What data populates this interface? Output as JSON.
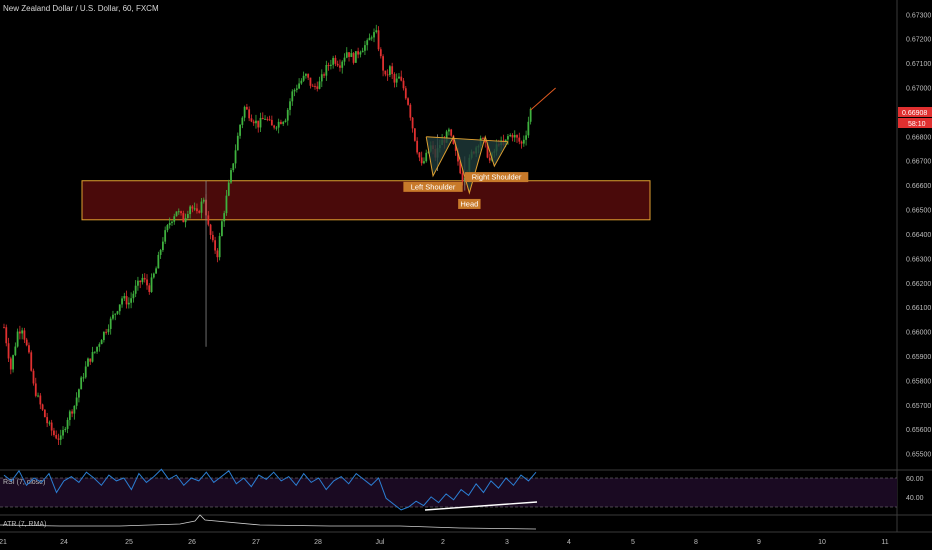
{
  "chart_data": {
    "type": "candlestick",
    "title": "New Zealand Dollar / U.S. Dollar, 60, FXCM",
    "y_axis": {
      "range": [
        0.6548,
        0.6734
      ],
      "ticks": [
        "0.67300",
        "0.67200",
        "0.67100",
        "0.67000",
        "0.66900",
        "0.66800",
        "0.66700",
        "0.66600",
        "0.66500",
        "0.66400",
        "0.66300",
        "0.66200",
        "0.66100",
        "0.66000",
        "0.65900",
        "0.65800",
        "0.65700",
        "0.65600",
        "0.65500"
      ]
    },
    "x_axis": {
      "ticks": [
        "21",
        "24",
        "25",
        "26",
        "27",
        "28",
        "Jul",
        "2",
        "3",
        "4",
        "5",
        "8",
        "9",
        "10",
        "11"
      ]
    },
    "price_labels": {
      "last": "0.66908",
      "countdown": "58:10"
    },
    "price_path": [
      [
        0,
        0.6602
      ],
      [
        3,
        0.6585
      ],
      [
        6,
        0.66
      ],
      [
        8,
        0.6602
      ],
      [
        11,
        0.659
      ],
      [
        13,
        0.6578
      ],
      [
        16,
        0.657
      ],
      [
        19,
        0.6563
      ],
      [
        22,
        0.6558
      ],
      [
        25,
        0.6556
      ],
      [
        28,
        0.6565
      ],
      [
        31,
        0.657
      ],
      [
        34,
        0.658
      ],
      [
        37,
        0.6588
      ],
      [
        40,
        0.6592
      ],
      [
        43,
        0.6598
      ],
      [
        46,
        0.6603
      ],
      [
        49,
        0.6608
      ],
      [
        52,
        0.6614
      ],
      [
        55,
        0.6612
      ],
      [
        58,
        0.6618
      ],
      [
        61,
        0.6622
      ],
      [
        64,
        0.6618
      ],
      [
        67,
        0.6626
      ],
      [
        70,
        0.6638
      ],
      [
        73,
        0.6645
      ],
      [
        76,
        0.665
      ],
      [
        79,
        0.6646
      ],
      [
        82,
        0.6652
      ],
      [
        85,
        0.6648
      ],
      [
        88,
        0.6655
      ],
      [
        90,
        0.6643
      ],
      [
        92,
        0.6636
      ],
      [
        94,
        0.6632
      ],
      [
        96,
        0.6645
      ],
      [
        98,
        0.6655
      ],
      [
        100,
        0.6665
      ],
      [
        102,
        0.6675
      ],
      [
        104,
        0.6685
      ],
      [
        106,
        0.6692
      ],
      [
        109,
        0.6688
      ],
      [
        112,
        0.6685
      ],
      [
        115,
        0.6688
      ],
      [
        118,
        0.6684
      ],
      [
        121,
        0.6686
      ],
      [
        124,
        0.6688
      ],
      [
        127,
        0.6698
      ],
      [
        130,
        0.6702
      ],
      [
        133,
        0.6705
      ],
      [
        136,
        0.67
      ],
      [
        139,
        0.6702
      ],
      [
        142,
        0.6708
      ],
      [
        145,
        0.6712
      ],
      [
        148,
        0.671
      ],
      [
        151,
        0.6715
      ],
      [
        154,
        0.6712
      ],
      [
        157,
        0.6716
      ],
      [
        160,
        0.6718
      ],
      [
        162,
        0.6722
      ],
      [
        164,
        0.6722
      ],
      [
        166,
        0.6712
      ],
      [
        168,
        0.6704
      ],
      [
        170,
        0.6708
      ],
      [
        172,
        0.6702
      ],
      [
        174,
        0.6704
      ],
      [
        176,
        0.67
      ],
      [
        178,
        0.6694
      ],
      [
        180,
        0.6684
      ],
      [
        182,
        0.6675
      ],
      [
        184,
        0.6668
      ],
      [
        186,
        0.6672
      ],
      [
        188,
        0.6676
      ],
      [
        190,
        0.6672
      ],
      [
        192,
        0.6677
      ],
      [
        194,
        0.6679
      ],
      [
        196,
        0.6682
      ],
      [
        198,
        0.6676
      ],
      [
        200,
        0.667
      ],
      [
        202,
        0.6663
      ],
      [
        204,
        0.6667
      ],
      [
        206,
        0.6673
      ],
      [
        208,
        0.6676
      ],
      [
        210,
        0.668
      ],
      [
        212,
        0.6676
      ],
      [
        214,
        0.667
      ],
      [
        216,
        0.6674
      ],
      [
        218,
        0.6678
      ],
      [
        220,
        0.6676
      ],
      [
        222,
        0.668
      ],
      [
        224,
        0.6681
      ],
      [
        226,
        0.6679
      ],
      [
        228,
        0.6677
      ],
      [
        230,
        0.6682
      ],
      [
        232,
        0.6691
      ]
    ],
    "spikes": [
      [
        89,
        0.6594,
        0.6662
      ],
      [
        191,
        0.6666,
        0.6681
      ],
      [
        203,
        0.6658,
        0.6672
      ]
    ],
    "zone": {
      "from": 0.6646,
      "to": 0.6662
    },
    "pattern": {
      "neckline": [
        [
          186,
          0.668
        ],
        [
          222,
          0.6678
        ]
      ],
      "trend_arrow": [
        [
          232,
          0.6691
        ],
        [
          243,
          0.67
        ]
      ],
      "points": [
        [
          186,
          0.668
        ],
        [
          189,
          0.6664
        ],
        [
          198,
          0.668
        ],
        [
          205,
          0.6657
        ],
        [
          212,
          0.668
        ],
        [
          216,
          0.6668
        ],
        [
          222,
          0.6678
        ]
      ],
      "labels": [
        {
          "text": "Left Shoulder",
          "at": [
            189,
            0.6664
          ]
        },
        {
          "text": "Head",
          "at": [
            205,
            0.6657
          ]
        },
        {
          "text": "Right Shoulder",
          "at": [
            217,
            0.6668
          ]
        }
      ]
    },
    "rsi": {
      "label": "RSI (7, close)",
      "levels": [
        "40.00",
        "60.00"
      ],
      "values": [
        62,
        58,
        65,
        55,
        60,
        57,
        63,
        50,
        58,
        61,
        57,
        64,
        60,
        55,
        62,
        58,
        60,
        52,
        63,
        57,
        61,
        66,
        59,
        62,
        55,
        60,
        58,
        64,
        57,
        61,
        65,
        56,
        60,
        54,
        62,
        59,
        64,
        58,
        61,
        55,
        63,
        57,
        60,
        52,
        58,
        61,
        56,
        63,
        59,
        55,
        60,
        46,
        42,
        38,
        40,
        44,
        41,
        47,
        43,
        49,
        45,
        52,
        48,
        56,
        50,
        58,
        53,
        60,
        55,
        62,
        58,
        64
      ]
    },
    "atr": {
      "label": "ATR (7, RMA)"
    }
  },
  "colors": {
    "up": "#3fb23f",
    "down": "#e03030",
    "zone_fill": "#4a0a0a",
    "zone_stroke": "#e0a030",
    "pattern": "#e0a030",
    "pattern_fill": "#1f3b3b",
    "rsi": "#2b7fd4",
    "rsi_bg": "#1a0a22",
    "price_tag": "#e03030",
    "label_bg": "#c87a2a"
  }
}
